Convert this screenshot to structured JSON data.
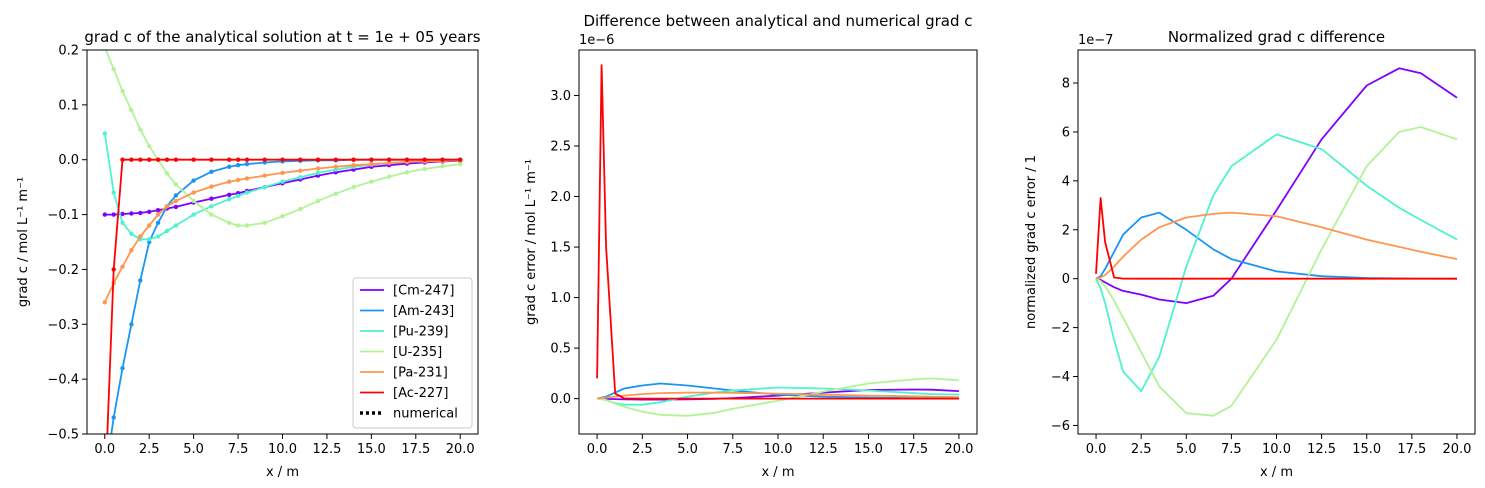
{
  "colors": {
    "Cm-247": "#8000ff",
    "Am-243": "#1996f3",
    "Pu-239": "#4df3ce",
    "U-235": "#b2f396",
    "Pa-231": "#ff964f",
    "Ac-227": "#ff0000"
  },
  "chart_data": [
    {
      "type": "line",
      "title": "grad c of the analytical solution at t = 1e + 05 years",
      "xlabel": "x / m",
      "ylabel": "grad c / mol L⁻¹ m⁻¹",
      "xlim": [
        -1,
        21
      ],
      "ylim": [
        -0.5,
        0.2
      ],
      "xticks": [
        "0.0",
        "2.5",
        "5.0",
        "7.5",
        "10.0",
        "12.5",
        "15.0",
        "17.5",
        "20.0"
      ],
      "yticks": [
        "−0.5",
        "−0.4",
        "−0.3",
        "−0.2",
        "−0.1",
        "0.0",
        "0.1",
        "0.2"
      ],
      "grid": false,
      "legend": "lower right",
      "legend_entries": [
        "[Cm-247]",
        "[Am-243]",
        "[Pu-239]",
        "[U-235]",
        "[Pa-231]",
        "[Ac-227]",
        "numerical"
      ],
      "x": [
        0,
        0.5,
        1,
        1.5,
        2,
        2.5,
        3,
        3.5,
        4,
        5,
        6,
        7,
        7.5,
        8,
        9,
        10,
        11,
        12,
        13,
        14,
        15,
        16,
        17,
        18,
        19,
        20
      ],
      "series": [
        {
          "name": "[Cm-247]",
          "values": [
            -0.1,
            -0.1,
            -0.099,
            -0.098,
            -0.097,
            -0.095,
            -0.092,
            -0.089,
            -0.086,
            -0.078,
            -0.071,
            -0.064,
            -0.061,
            -0.057,
            -0.05,
            -0.043,
            -0.036,
            -0.029,
            -0.023,
            -0.018,
            -0.013,
            -0.01,
            -0.007,
            -0.005,
            -0.003,
            -0.002
          ]
        },
        {
          "name": "[Am-243]",
          "values": [
            -0.58,
            -0.47,
            -0.38,
            -0.3,
            -0.22,
            -0.15,
            -0.115,
            -0.085,
            -0.065,
            -0.038,
            -0.022,
            -0.013,
            -0.01,
            -0.008,
            -0.005,
            -0.003,
            -0.002,
            -0.001,
            -0.001,
            0,
            0,
            0,
            0,
            0,
            0,
            0
          ]
        },
        {
          "name": "[Pu-239]",
          "values": [
            0.048,
            -0.06,
            -0.115,
            -0.135,
            -0.145,
            -0.145,
            -0.14,
            -0.13,
            -0.12,
            -0.1,
            -0.085,
            -0.072,
            -0.066,
            -0.06,
            -0.05,
            -0.04,
            -0.032,
            -0.024,
            -0.018,
            -0.013,
            -0.009,
            -0.006,
            -0.004,
            -0.003,
            -0.002,
            -0.001
          ]
        },
        {
          "name": "[U-235]",
          "values": [
            0.205,
            0.165,
            0.125,
            0.09,
            0.055,
            0.025,
            0.0,
            -0.025,
            -0.045,
            -0.075,
            -0.1,
            -0.115,
            -0.12,
            -0.12,
            -0.115,
            -0.103,
            -0.09,
            -0.075,
            -0.062,
            -0.05,
            -0.04,
            -0.031,
            -0.023,
            -0.017,
            -0.012,
            -0.008
          ]
        },
        {
          "name": "[Pa-231]",
          "values": [
            -0.26,
            -0.225,
            -0.195,
            -0.165,
            -0.14,
            -0.12,
            -0.1,
            -0.085,
            -0.075,
            -0.06,
            -0.049,
            -0.04,
            -0.037,
            -0.034,
            -0.029,
            -0.024,
            -0.02,
            -0.016,
            -0.013,
            -0.01,
            -0.008,
            -0.006,
            -0.004,
            -0.003,
            -0.002,
            -0.001
          ]
        },
        {
          "name": "[Ac-227]",
          "values": [
            -0.62,
            -0.2,
            0.0,
            0,
            0,
            0,
            0,
            0,
            0,
            0,
            0,
            0,
            0,
            0,
            0,
            0,
            0,
            0,
            0,
            0,
            0,
            0,
            0,
            0,
            0,
            0
          ]
        }
      ]
    },
    {
      "type": "line",
      "title": "Difference between analytical and numerical grad c",
      "xlabel": "x / m",
      "ylabel": "grad c error / mol L⁻¹ m⁻¹",
      "scale_label": "1e−6",
      "xlim": [
        -1,
        21
      ],
      "ylim": [
        -0.35,
        3.45
      ],
      "xticks": [
        "0.0",
        "2.5",
        "5.0",
        "7.5",
        "10.0",
        "12.5",
        "15.0",
        "17.5",
        "20.0"
      ],
      "yticks": [
        "0.0",
        "0.5",
        "1.0",
        "1.5",
        "2.0",
        "2.5",
        "3.0"
      ],
      "grid": false,
      "x": [
        0,
        0.25,
        0.5,
        1,
        1.5,
        2.5,
        3.5,
        5,
        6.5,
        7.5,
        10,
        12.5,
        15,
        17.5,
        18.5,
        20
      ],
      "series": [
        {
          "name": "[Cm-247]",
          "values": [
            0,
            0,
            -0.003,
            -0.005,
            -0.008,
            -0.01,
            -0.01,
            -0.008,
            -0.002,
            0.005,
            0.03,
            0.06,
            0.085,
            0.09,
            0.088,
            0.075
          ]
        },
        {
          "name": "[Am-243]",
          "values": [
            0,
            0.01,
            0.02,
            0.06,
            0.1,
            0.13,
            0.15,
            0.13,
            0.1,
            0.08,
            0.04,
            0.02,
            0.01,
            0.005,
            0.003,
            0.002
          ]
        },
        {
          "name": "[Pu-239]",
          "values": [
            0,
            -0.005,
            -0.015,
            -0.045,
            -0.06,
            -0.06,
            -0.035,
            0.02,
            0.06,
            0.08,
            0.11,
            0.1,
            0.08,
            0.055,
            0.045,
            0.04
          ]
        },
        {
          "name": "[U-235]",
          "values": [
            0,
            -0.005,
            -0.015,
            -0.05,
            -0.08,
            -0.13,
            -0.16,
            -0.17,
            -0.14,
            -0.1,
            -0.02,
            0.07,
            0.15,
            0.19,
            0.2,
            0.18
          ]
        },
        {
          "name": "[Pa-231]",
          "values": [
            0,
            0.005,
            0.01,
            0.02,
            0.03,
            0.045,
            0.055,
            0.06,
            0.06,
            0.058,
            0.05,
            0.04,
            0.03,
            0.023,
            0.02,
            0.015
          ]
        },
        {
          "name": "[Ac-227]",
          "values": [
            0.2,
            3.3,
            1.5,
            0.05,
            0.002,
            0,
            0,
            0,
            0,
            0,
            0,
            0,
            0,
            0,
            0,
            0
          ]
        }
      ]
    },
    {
      "type": "line",
      "title": "Normalized grad c difference",
      "xlabel": "x / m",
      "ylabel": "normalized grad c error / 1",
      "scale_label": "1e−7",
      "xlim": [
        -1,
        21
      ],
      "ylim": [
        -6.35,
        9.35
      ],
      "xticks": [
        "0.0",
        "2.5",
        "5.0",
        "7.5",
        "10.0",
        "12.5",
        "15.0",
        "17.5",
        "20.0"
      ],
      "yticks": [
        "−6",
        "−4",
        "−2",
        "0",
        "2",
        "4",
        "6",
        "8"
      ],
      "grid": false,
      "x": [
        0,
        0.25,
        0.5,
        1,
        1.5,
        2.5,
        3.5,
        5,
        6.5,
        7.5,
        10,
        12.5,
        15,
        16.8,
        18,
        20
      ],
      "series": [
        {
          "name": "[Cm-247]",
          "values": [
            0,
            -0.05,
            -0.15,
            -0.35,
            -0.5,
            -0.65,
            -0.85,
            -1.0,
            -0.7,
            0.0,
            2.8,
            5.7,
            7.9,
            8.6,
            8.4,
            7.4
          ]
        },
        {
          "name": "[Am-243]",
          "values": [
            0,
            0.1,
            0.4,
            1.1,
            1.8,
            2.5,
            2.7,
            2.0,
            1.2,
            0.8,
            0.3,
            0.1,
            0.03,
            0.01,
            0.005,
            0
          ]
        },
        {
          "name": "[Pu-239]",
          "values": [
            0,
            -0.4,
            -1.0,
            -2.5,
            -3.8,
            -4.6,
            -3.2,
            0.5,
            3.4,
            4.6,
            5.9,
            5.3,
            3.8,
            2.9,
            2.4,
            1.6
          ]
        },
        {
          "name": "[U-235]",
          "values": [
            0,
            -0.1,
            -0.3,
            -0.9,
            -1.6,
            -3.0,
            -4.4,
            -5.5,
            -5.6,
            -5.2,
            -2.5,
            1.2,
            4.6,
            6.0,
            6.2,
            5.7
          ]
        },
        {
          "name": "[Pa-231]",
          "values": [
            0,
            0.05,
            0.15,
            0.5,
            0.9,
            1.6,
            2.1,
            2.5,
            2.65,
            2.7,
            2.55,
            2.1,
            1.6,
            1.3,
            1.1,
            0.8
          ]
        },
        {
          "name": "[Ac-227]",
          "values": [
            0.2,
            3.3,
            1.5,
            0.05,
            0.002,
            0,
            0,
            0,
            0,
            0,
            0,
            0,
            0,
            0,
            0,
            0
          ]
        }
      ]
    }
  ]
}
